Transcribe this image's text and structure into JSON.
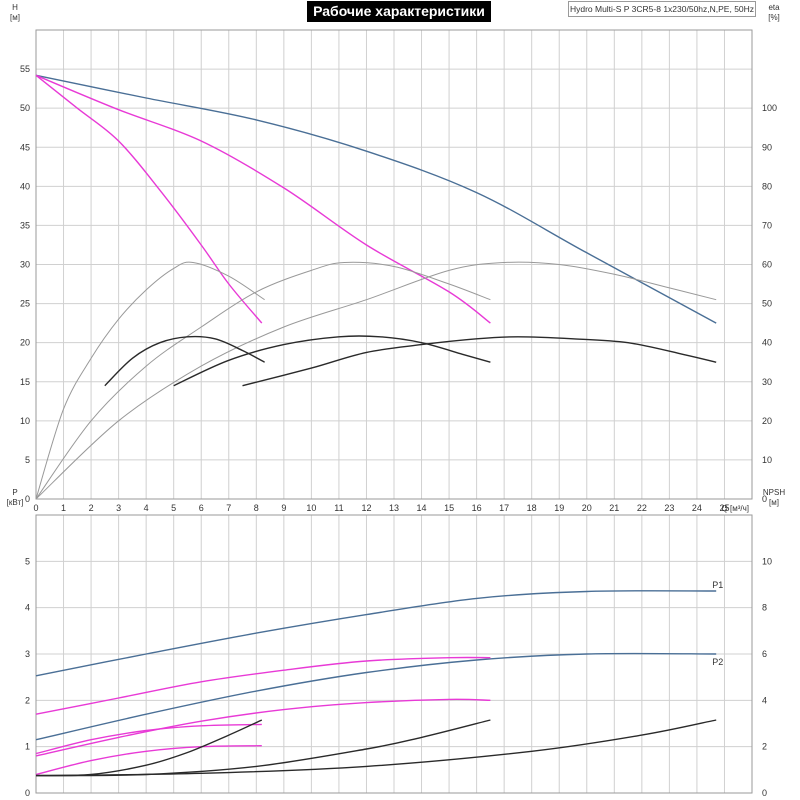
{
  "title": "Рабочие характеристики",
  "model": "Hydro Multi-S P 3CR5-8 1x230/50hz,N,PE, 50Hz",
  "colors": {
    "blue": "#4a6f96",
    "magenta": "#e83ad6",
    "gray": "#999999",
    "black": "#2a2a2a"
  },
  "chart_data": [
    {
      "type": "line",
      "name": "top",
      "xlabel": "Q [м³/ч]",
      "ylabel": "H [м]",
      "y2label": "eta [%]",
      "xlim": [
        0,
        26
      ],
      "ylim": [
        0,
        60
      ],
      "y2lim": [
        0,
        120
      ],
      "grid": true,
      "xticks": [
        "0",
        "1",
        "2",
        "3",
        "4",
        "5",
        "6",
        "7",
        "8",
        "9",
        "10",
        "11",
        "12",
        "13",
        "14",
        "15",
        "16",
        "17",
        "18",
        "19",
        "20",
        "21",
        "22",
        "23",
        "24",
        "25"
      ],
      "yticks": [
        "0",
        "5",
        "10",
        "15",
        "20",
        "25",
        "30",
        "35",
        "40",
        "45",
        "50",
        "55"
      ],
      "y2ticks": [
        "0",
        "10",
        "20",
        "30",
        "40",
        "50",
        "60",
        "70",
        "80",
        "90",
        "100"
      ],
      "series": [
        {
          "color": "blue",
          "x": [
            0,
            4,
            8,
            12,
            16,
            20,
            24.7
          ],
          "y": [
            54.2,
            51.3,
            48.5,
            44.5,
            39.2,
            31.5,
            22.5
          ]
        },
        {
          "color": "magenta",
          "x": [
            0,
            3,
            6,
            9,
            12,
            15,
            16.5
          ],
          "y": [
            54.2,
            49.8,
            45.8,
            39.8,
            32.5,
            26.5,
            22.5
          ]
        },
        {
          "color": "magenta",
          "x": [
            0,
            1.5,
            3,
            4.5,
            6,
            7,
            8.2
          ],
          "y": [
            54.2,
            50,
            45.8,
            39.5,
            32.5,
            27.5,
            22.5
          ]
        },
        {
          "color": "gray",
          "axis": "y2",
          "x": [
            0,
            1,
            2,
            3,
            4,
            5,
            5.7,
            7,
            8.3
          ],
          "y": [
            0,
            23,
            36,
            46,
            53.5,
            59,
            60.5,
            57,
            51
          ]
        },
        {
          "color": "gray",
          "axis": "y2",
          "x": [
            0,
            2,
            4,
            6,
            8,
            10,
            11.2,
            13,
            15,
            16.5
          ],
          "y": [
            0,
            20,
            34,
            44,
            53,
            58.5,
            60.5,
            59.5,
            55,
            51
          ]
        },
        {
          "color": "gray",
          "axis": "y2",
          "x": [
            0,
            3,
            6,
            9,
            12,
            15,
            17,
            19,
            21,
            23,
            24.7
          ],
          "y": [
            0,
            20,
            34,
            44,
            51,
            58.5,
            60.5,
            60,
            57.5,
            54,
            51
          ]
        },
        {
          "color": "black",
          "axis": "y2",
          "x": [
            2.5,
            3.5,
            4.5,
            5.5,
            6.5,
            7.5,
            8.3
          ],
          "y": [
            29,
            36,
            40,
            41.5,
            41,
            38,
            35
          ]
        },
        {
          "color": "black",
          "axis": "y2",
          "x": [
            5,
            7,
            9,
            11,
            12.5,
            14,
            15.5,
            16.5
          ],
          "y": [
            29,
            35.5,
            39.5,
            41.5,
            41.5,
            40,
            37,
            35
          ]
        },
        {
          "color": "black",
          "axis": "y2",
          "x": [
            7.5,
            10,
            12,
            14,
            16,
            17.5,
            19.5,
            21.5,
            23.5,
            24.7
          ],
          "y": [
            29,
            33.5,
            37.5,
            39.5,
            41,
            41.5,
            41,
            40,
            37,
            35
          ]
        }
      ]
    },
    {
      "type": "line",
      "name": "bottom",
      "ylabel": "P [кВт]",
      "y2label": "NPSH [м]",
      "xlim": [
        0,
        26
      ],
      "ylim": [
        0,
        6
      ],
      "y2lim": [
        0,
        12
      ],
      "grid": true,
      "yticks": [
        "0",
        "1",
        "2",
        "3",
        "4",
        "5"
      ],
      "y2ticks": [
        "0",
        "2",
        "4",
        "6",
        "8",
        "10"
      ],
      "series": [
        {
          "color": "blue",
          "name": "P1",
          "x": [
            0,
            4,
            8,
            12,
            16,
            20,
            24.7
          ],
          "y": [
            2.53,
            3.0,
            3.45,
            3.85,
            4.2,
            4.35,
            4.36
          ]
        },
        {
          "color": "blue",
          "name": "P2",
          "x": [
            0,
            4,
            8,
            12,
            16,
            20,
            24.7
          ],
          "y": [
            1.15,
            1.7,
            2.2,
            2.6,
            2.87,
            3.0,
            3.0
          ]
        },
        {
          "color": "magenta",
          "x": [
            0,
            3,
            6,
            9,
            12,
            15,
            16.5
          ],
          "y": [
            1.7,
            2.05,
            2.4,
            2.65,
            2.85,
            2.92,
            2.92
          ]
        },
        {
          "color": "magenta",
          "x": [
            0,
            3,
            6,
            9,
            12,
            15,
            16.5
          ],
          "y": [
            0.8,
            1.2,
            1.55,
            1.8,
            1.95,
            2.02,
            2.0
          ]
        },
        {
          "color": "magenta",
          "x": [
            0,
            2,
            4,
            6,
            8.2
          ],
          "y": [
            0.85,
            1.15,
            1.35,
            1.45,
            1.48
          ]
        },
        {
          "color": "magenta",
          "x": [
            0,
            2,
            4,
            6,
            8.2
          ],
          "y": [
            0.4,
            0.7,
            0.9,
            1.0,
            1.02
          ]
        },
        {
          "color": "black",
          "axis": "y2",
          "x": [
            0,
            2,
            4,
            5.5,
            7,
            8.2
          ],
          "y": [
            0.75,
            0.8,
            1.2,
            1.75,
            2.5,
            3.15
          ]
        },
        {
          "color": "black",
          "axis": "y2",
          "x": [
            0,
            4,
            8,
            12,
            14,
            16.5
          ],
          "y": [
            0.75,
            0.8,
            1.15,
            1.9,
            2.4,
            3.15
          ]
        },
        {
          "color": "black",
          "axis": "y2",
          "x": [
            0,
            6,
            12,
            18,
            22,
            24.7
          ],
          "y": [
            0.75,
            0.85,
            1.15,
            1.8,
            2.5,
            3.15
          ]
        }
      ]
    }
  ]
}
